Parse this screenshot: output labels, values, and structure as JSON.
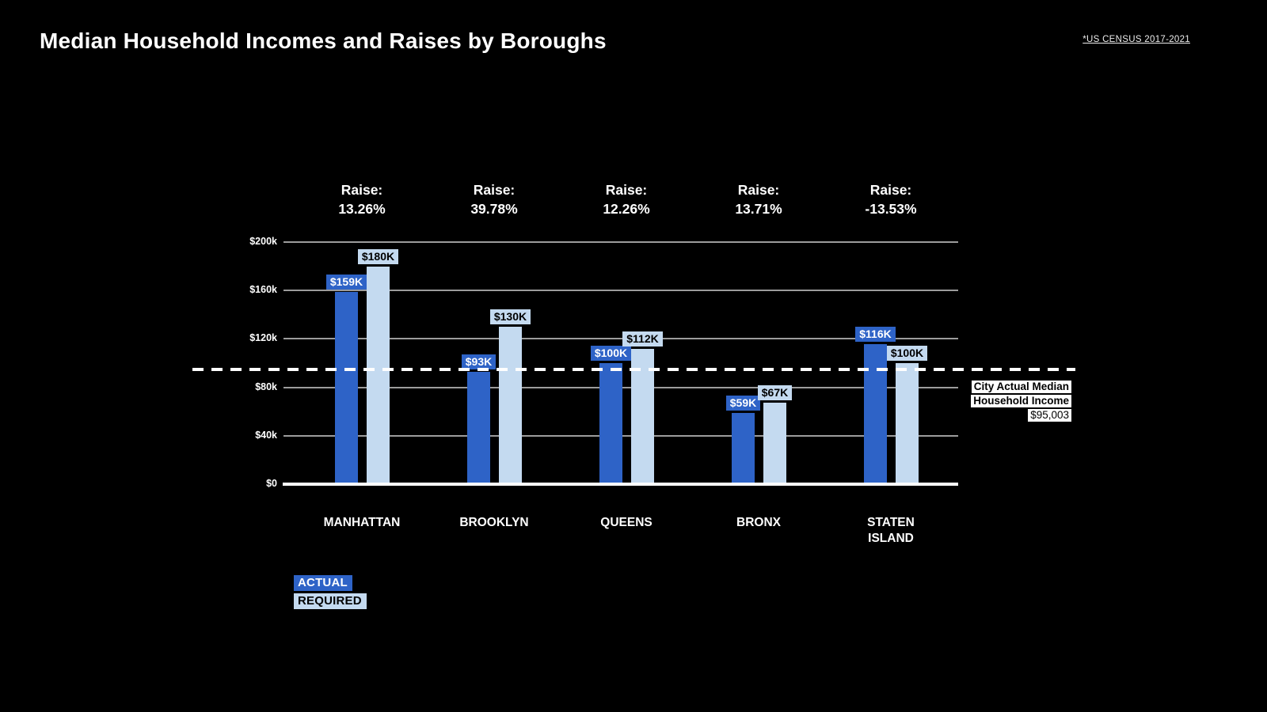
{
  "title": "Median Household Incomes and Raises by Boroughs",
  "source_note": "*US CENSUS 2017-2021",
  "colors": {
    "background": "#000000",
    "actual": "#2e63c7",
    "required": "#c4daf0",
    "grid": "#9c9c9c",
    "axis": "#ffffff",
    "text": "#ffffff"
  },
  "legend": {
    "items": [
      {
        "label": "ACTUAL",
        "series": "actual",
        "text_color": "#ffffff"
      },
      {
        "label": "REQUIRED",
        "series": "required",
        "text_color": "#000000"
      }
    ]
  },
  "reference_line": {
    "lines": [
      "City Actual Median",
      "Household Income"
    ],
    "value_label": "$95,003",
    "value": 95003
  },
  "chart_data": {
    "type": "bar",
    "title": "Median Household Incomes and Raises by Boroughs",
    "categories": [
      "MANHATTAN",
      "BROOKLYN",
      "QUEENS",
      "BRONX",
      "STATEN\nISLAND"
    ],
    "series": [
      {
        "name": "ACTUAL",
        "color": "#2e63c7",
        "label_color": "#ffffff",
        "values": [
          159000,
          93000,
          100000,
          59000,
          116000
        ],
        "labels": [
          "$159K",
          "$93K",
          "$100K",
          "$59K",
          "$116K"
        ]
      },
      {
        "name": "REQUIRED",
        "color": "#c4daf0",
        "label_color": "#000000",
        "values": [
          180000,
          130000,
          112000,
          67000,
          100000
        ],
        "labels": [
          "$180K",
          "$130K",
          "$112K",
          "$67K",
          "$100K"
        ]
      }
    ],
    "raise_prefix": "Raise:",
    "raises": [
      "13.26%",
      "39.78%",
      "12.26%",
      "13.71%",
      "-13.53%"
    ],
    "y_ticks": [
      {
        "label": "$200k",
        "value": 200000
      },
      {
        "label": "$160k",
        "value": 160000
      },
      {
        "label": "$120k",
        "value": 120000
      },
      {
        "label": "$80k",
        "value": 80000
      },
      {
        "label": "$40k",
        "value": 40000
      },
      {
        "label": "$0",
        "value": 0
      }
    ],
    "ylim": [
      0,
      200000
    ],
    "grid": true,
    "legend_position": "bottom-left",
    "reference": {
      "value": 95003,
      "label": "City Actual Median Household Income $95,003"
    }
  }
}
